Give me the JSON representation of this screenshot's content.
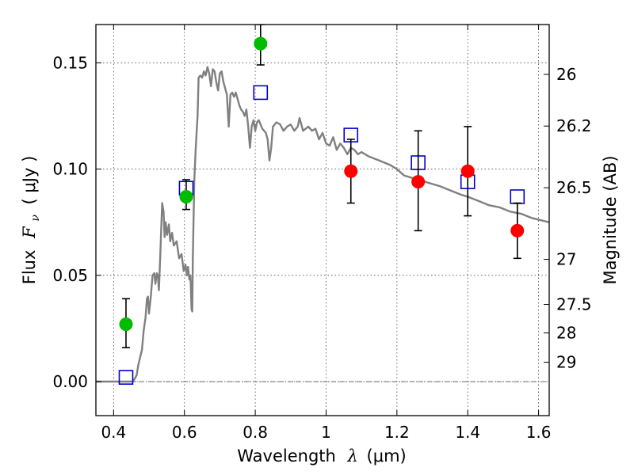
{
  "chart_data": {
    "type": "scatter",
    "xlabel_text": "Wavelength",
    "xlabel_symbol": "λ",
    "xlabel_unit": "(μm)",
    "ylabel_text": "Flux",
    "ylabel_symbol": "F",
    "ylabel_subscript": "ν",
    "ylabel_unit": "( μJy )",
    "y2label": "Magnitude (AB)",
    "xlim": [
      0.35,
      1.63
    ],
    "ylim": [
      -0.016,
      0.168
    ],
    "grid": true,
    "x_ticks": [
      {
        "value": 0.4,
        "label": "0.4"
      },
      {
        "value": 0.6,
        "label": "0.6"
      },
      {
        "value": 0.8,
        "label": "0.8"
      },
      {
        "value": 1.0,
        "label": "1"
      },
      {
        "value": 1.2,
        "label": "1.2"
      },
      {
        "value": 1.4,
        "label": "1.4"
      },
      {
        "value": 1.6,
        "label": "1.6"
      }
    ],
    "y_ticks": [
      {
        "value": 0.0,
        "label": "0.00"
      },
      {
        "value": 0.05,
        "label": "0.05"
      },
      {
        "value": 0.1,
        "label": "0.10"
      },
      {
        "value": 0.15,
        "label": "0.15"
      }
    ],
    "y2_ticks": [
      {
        "value": 26,
        "label": "26"
      },
      {
        "value": 26.2,
        "label": "26.2"
      },
      {
        "value": 26.5,
        "label": "26.5"
      },
      {
        "value": 27,
        "label": "27"
      },
      {
        "value": 27.5,
        "label": "27.5"
      },
      {
        "value": 28,
        "label": "28"
      },
      {
        "value": 29,
        "label": "29"
      }
    ],
    "model_spectrum": {
      "color": "#808080",
      "points": [
        [
          0.35,
          0.0
        ],
        [
          0.44,
          0.0
        ],
        [
          0.455,
          0.0
        ],
        [
          0.465,
          0.003
        ],
        [
          0.47,
          0.008
        ],
        [
          0.48,
          0.015
        ],
        [
          0.485,
          0.024
        ],
        [
          0.49,
          0.03
        ],
        [
          0.494,
          0.039
        ],
        [
          0.497,
          0.04
        ],
        [
          0.5,
          0.032
        ],
        [
          0.505,
          0.04
        ],
        [
          0.51,
          0.05
        ],
        [
          0.515,
          0.051
        ],
        [
          0.518,
          0.046
        ],
        [
          0.522,
          0.051
        ],
        [
          0.525,
          0.05
        ],
        [
          0.528,
          0.043
        ],
        [
          0.532,
          0.06
        ],
        [
          0.537,
          0.084
        ],
        [
          0.541,
          0.08
        ],
        [
          0.544,
          0.068
        ],
        [
          0.547,
          0.075
        ],
        [
          0.551,
          0.069
        ],
        [
          0.556,
          0.074
        ],
        [
          0.56,
          0.066
        ],
        [
          0.565,
          0.07
        ],
        [
          0.57,
          0.064
        ],
        [
          0.578,
          0.066
        ],
        [
          0.585,
          0.058
        ],
        [
          0.592,
          0.06
        ],
        [
          0.598,
          0.052
        ],
        [
          0.603,
          0.055
        ],
        [
          0.607,
          0.05
        ],
        [
          0.61,
          0.054
        ],
        [
          0.614,
          0.048
        ],
        [
          0.617,
          0.05
        ],
        [
          0.62,
          0.034
        ],
        [
          0.622,
          0.033
        ],
        [
          0.624,
          0.06
        ],
        [
          0.628,
          0.095
        ],
        [
          0.632,
          0.11
        ],
        [
          0.637,
          0.125
        ],
        [
          0.64,
          0.143
        ],
        [
          0.645,
          0.144
        ],
        [
          0.65,
          0.143
        ],
        [
          0.655,
          0.146
        ],
        [
          0.66,
          0.144
        ],
        [
          0.665,
          0.148
        ],
        [
          0.67,
          0.145
        ],
        [
          0.675,
          0.139
        ],
        [
          0.68,
          0.147
        ],
        [
          0.685,
          0.146
        ],
        [
          0.69,
          0.141
        ],
        [
          0.695,
          0.137
        ],
        [
          0.7,
          0.145
        ],
        [
          0.705,
          0.146
        ],
        [
          0.71,
          0.141
        ],
        [
          0.715,
          0.138
        ],
        [
          0.72,
          0.135
        ],
        [
          0.725,
          0.12
        ],
        [
          0.73,
          0.135
        ],
        [
          0.735,
          0.136
        ],
        [
          0.74,
          0.134
        ],
        [
          0.745,
          0.136
        ],
        [
          0.75,
          0.133
        ],
        [
          0.755,
          0.13
        ],
        [
          0.76,
          0.128
        ],
        [
          0.765,
          0.127
        ],
        [
          0.77,
          0.125
        ],
        [
          0.775,
          0.128
        ],
        [
          0.78,
          0.12
        ],
        [
          0.785,
          0.11
        ],
        [
          0.79,
          0.12
        ],
        [
          0.795,
          0.123
        ],
        [
          0.8,
          0.118
        ],
        [
          0.805,
          0.122
        ],
        [
          0.81,
          0.123
        ],
        [
          0.815,
          0.121
        ],
        [
          0.82,
          0.119
        ],
        [
          0.83,
          0.117
        ],
        [
          0.835,
          0.114
        ],
        [
          0.84,
          0.104
        ],
        [
          0.845,
          0.11
        ],
        [
          0.85,
          0.12
        ],
        [
          0.86,
          0.122
        ],
        [
          0.87,
          0.121
        ],
        [
          0.88,
          0.118
        ],
        [
          0.89,
          0.12
        ],
        [
          0.9,
          0.121
        ],
        [
          0.91,
          0.118
        ],
        [
          0.92,
          0.12
        ],
        [
          0.925,
          0.124
        ],
        [
          0.935,
          0.118
        ],
        [
          0.95,
          0.12
        ],
        [
          0.96,
          0.118
        ],
        [
          0.97,
          0.119
        ],
        [
          0.98,
          0.114
        ],
        [
          0.99,
          0.117
        ],
        [
          1.0,
          0.112
        ],
        [
          1.01,
          0.111
        ],
        [
          1.02,
          0.115
        ],
        [
          1.03,
          0.109
        ],
        [
          1.04,
          0.112
        ],
        [
          1.05,
          0.11
        ],
        [
          1.06,
          0.107
        ],
        [
          1.07,
          0.11
        ],
        [
          1.08,
          0.109
        ],
        [
          1.09,
          0.107
        ],
        [
          1.1,
          0.108
        ],
        [
          1.12,
          0.106
        ],
        [
          1.15,
          0.104
        ],
        [
          1.18,
          0.102
        ],
        [
          1.2,
          0.1
        ],
        [
          1.22,
          0.097
        ],
        [
          1.24,
          0.096
        ],
        [
          1.26,
          0.095
        ],
        [
          1.28,
          0.094
        ],
        [
          1.3,
          0.093
        ],
        [
          1.32,
          0.092
        ],
        [
          1.35,
          0.09
        ],
        [
          1.38,
          0.088
        ],
        [
          1.4,
          0.087
        ],
        [
          1.43,
          0.085
        ],
        [
          1.46,
          0.083
        ],
        [
          1.49,
          0.082
        ],
        [
          1.52,
          0.08
        ],
        [
          1.55,
          0.079
        ],
        [
          1.58,
          0.077
        ],
        [
          1.63,
          0.075
        ]
      ]
    },
    "squares": {
      "color": "#0000cc",
      "points": [
        {
          "x": 0.435,
          "y": 0.002
        },
        {
          "x": 0.605,
          "y": 0.091
        },
        {
          "x": 0.815,
          "y": 0.136
        },
        {
          "x": 1.07,
          "y": 0.116
        },
        {
          "x": 1.26,
          "y": 0.103
        },
        {
          "x": 1.4,
          "y": 0.094
        },
        {
          "x": 1.54,
          "y": 0.087
        }
      ]
    },
    "series": [
      {
        "color": "#00bb00",
        "points": [
          {
            "x": 0.435,
            "y": 0.027,
            "yerr_low": 0.016,
            "yerr_high": 0.039
          },
          {
            "x": 0.605,
            "y": 0.087,
            "yerr_low": 0.081,
            "yerr_high": 0.095
          },
          {
            "x": 0.815,
            "y": 0.159,
            "yerr_low": 0.149,
            "yerr_high": 0.168
          }
        ]
      },
      {
        "color": "#ff0000",
        "points": [
          {
            "x": 1.07,
            "y": 0.099,
            "yerr_low": 0.084,
            "yerr_high": 0.114
          },
          {
            "x": 1.26,
            "y": 0.094,
            "yerr_low": 0.071,
            "yerr_high": 0.118
          },
          {
            "x": 1.4,
            "y": 0.099,
            "yerr_low": 0.078,
            "yerr_high": 0.12
          },
          {
            "x": 1.54,
            "y": 0.071,
            "yerr_low": 0.058,
            "yerr_high": 0.084
          }
        ]
      }
    ]
  }
}
